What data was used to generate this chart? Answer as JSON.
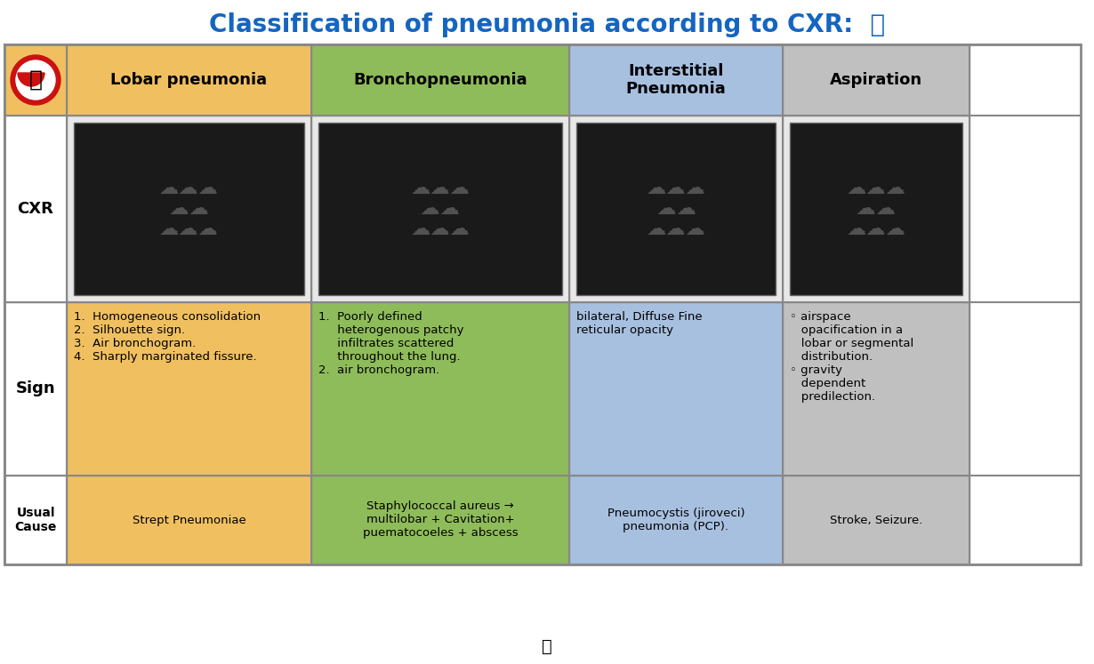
{
  "title": "Classification of pneumonia according to CXR: 👇",
  "title_color": "#1565C0",
  "background_color": "#FFFFFF",
  "col_headers": [
    "Lobar pneumonia",
    "Bronchopneumonia",
    "Interstitial\nPneumonia",
    "Aspiration"
  ],
  "col_header_colors": [
    "#F0C060",
    "#8FBC5A",
    "#A8C0E0",
    "#C0C0C0"
  ],
  "row_labels": [
    "CXR",
    "Sign",
    "Usual\nCause"
  ],
  "row_label_color": "#000000",
  "row_colors_sign": [
    "#F0C060",
    "#8FBC5A",
    "#A8C0E0",
    "#C0C0C0"
  ],
  "row_colors_cause": [
    "#F0C060",
    "#8FBC5A",
    "#A8C0E0",
    "#C0C0C0"
  ],
  "sign_texts": [
    "1.  Homogeneous consolidation\n2.  Silhouette sign.\n3.  Air bronchogram.\n4.  Sharply marginated fissure.",
    "1.  Poorly defined\n     heterogenous patchy\n     infiltrates scattered\n     throughout the lung.\n2.  air bronchogram.",
    "bilateral, Diffuse Fine\nreticular opacity",
    "◦ airspace\n   opacification in a\n   lobar or segmental\n   distribution.\n◦ gravity\n   dependent\n   predilection."
  ],
  "cause_texts": [
    "Strept Pneumoniae",
    "Staphylococcal aureus →\nmultilobar + Cavitation+\npuematocoeles + abscess",
    "Pneumocystis (jiroveci)\npneumonia (PCP).",
    "Stroke, Seizure."
  ],
  "grid_color": "#888888",
  "text_color": "#000000",
  "header_text_color": "#000000"
}
